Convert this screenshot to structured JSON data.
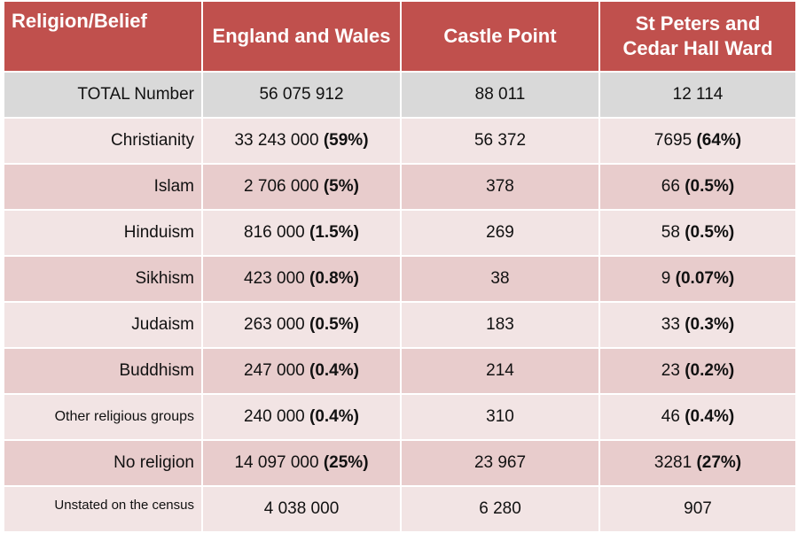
{
  "header": {
    "col1": "Religion/Belief",
    "col2": "England and Wales",
    "col3": "Castle Point",
    "col4": "St Peters and Cedar Hall Ward"
  },
  "rows": [
    {
      "label": "TOTAL Number",
      "ew_num": "56 075 912",
      "ew_pct": "",
      "cp": "88 011",
      "ward_num": "12 114",
      "ward_pct": ""
    },
    {
      "label": "Christianity",
      "ew_num": "33 243 000",
      "ew_pct": "(59%)",
      "cp": "56 372",
      "ward_num": "7695",
      "ward_pct": "(64%)"
    },
    {
      "label": "Islam",
      "ew_num": "2 706 000",
      "ew_pct": "(5%)",
      "cp": "378",
      "ward_num": "66",
      "ward_pct": "(0.5%)"
    },
    {
      "label": "Hinduism",
      "ew_num": "816 000",
      "ew_pct": "(1.5%)",
      "cp": "269",
      "ward_num": "58",
      "ward_pct": "(0.5%)"
    },
    {
      "label": "Sikhism",
      "ew_num": "423 000",
      "ew_pct": "(0.8%)",
      "cp": "38",
      "ward_num": "9",
      "ward_pct": "(0.07%)"
    },
    {
      "label": "Judaism",
      "ew_num": "263 000",
      "ew_pct": "(0.5%)",
      "cp": "183",
      "ward_num": "33",
      "ward_pct": "(0.3%)"
    },
    {
      "label": "Buddhism",
      "ew_num": "247 000",
      "ew_pct": "(0.4%)",
      "cp": "214",
      "ward_num": "23",
      "ward_pct": "(0.2%)"
    },
    {
      "label": "Other religious groups",
      "ew_num": "240 000",
      "ew_pct": "(0.4%)",
      "cp": "310",
      "ward_num": "46",
      "ward_pct": "(0.4%)"
    },
    {
      "label": "No religion",
      "ew_num": "14 097 000",
      "ew_pct": " (25%)",
      "cp": "23 967",
      "ward_num": "3281",
      "ward_pct": "(27%)"
    },
    {
      "label": "Unstated on the census",
      "ew_num": "4 038 000",
      "ew_pct": "",
      "cp": "6 280",
      "ward_num": "907",
      "ward_pct": ""
    }
  ],
  "colors": {
    "header_bg": "#c0504d",
    "total_row_bg": "#d9d9d9",
    "light_row_bg": "#f2e4e4",
    "dark_row_bg": "#e8cccc"
  }
}
